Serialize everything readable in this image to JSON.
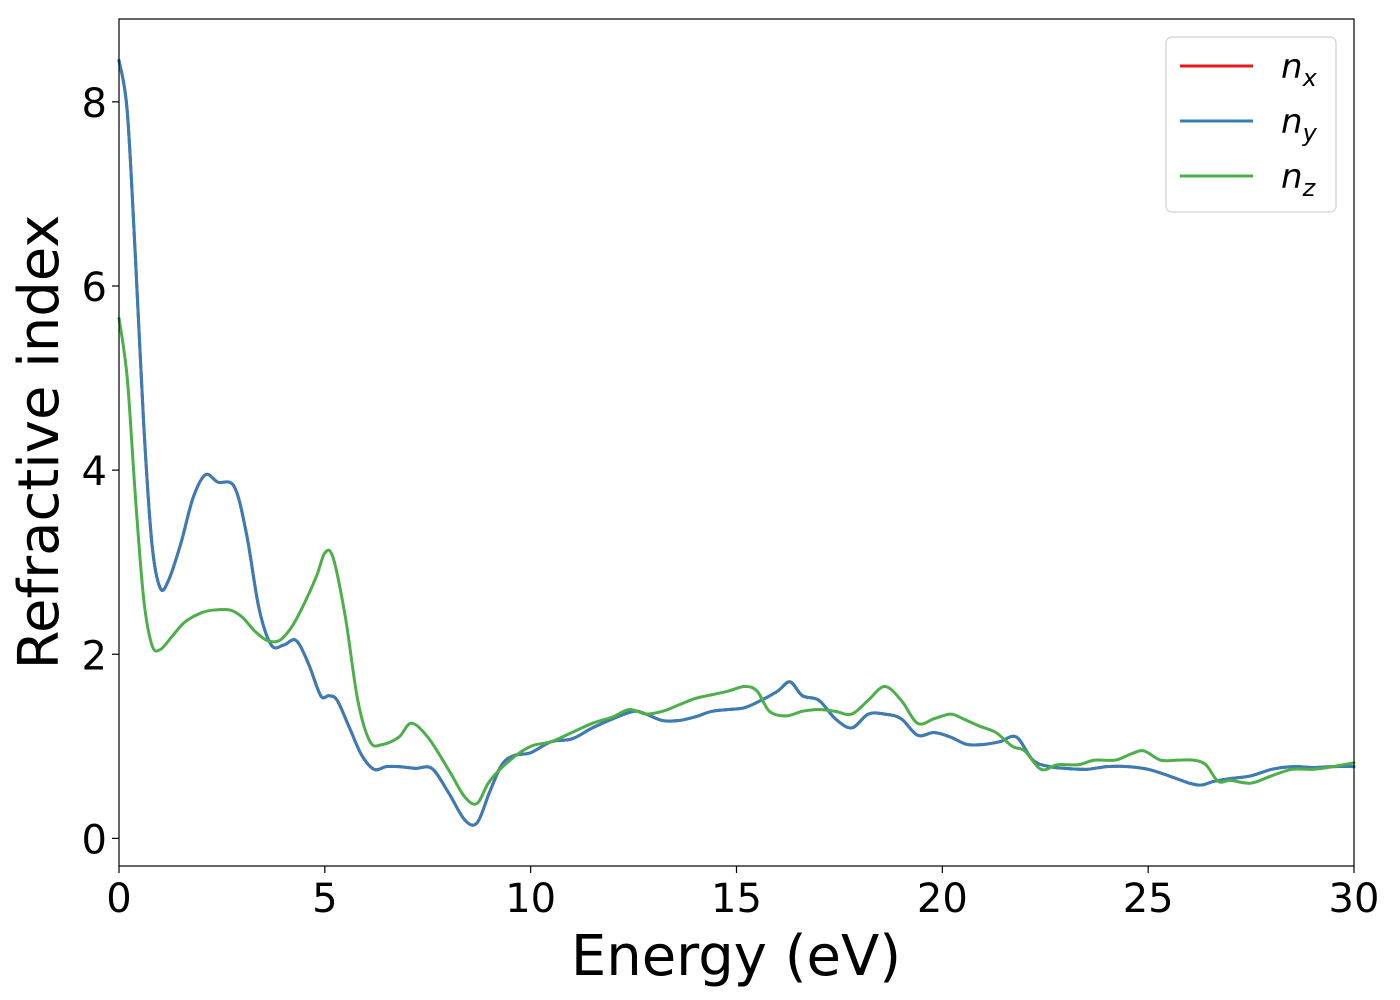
{
  "chart_data": {
    "type": "line",
    "title": "",
    "xlabel": "Energy (eV)",
    "ylabel": "Refractive index",
    "xlim": [
      0,
      30
    ],
    "ylim": [
      -0.3,
      8.9
    ],
    "xticks": [
      0,
      5,
      10,
      15,
      20,
      25,
      30
    ],
    "yticks": [
      0,
      2,
      4,
      6,
      8
    ],
    "grid": false,
    "legend_position": "top-right",
    "series": [
      {
        "name": "n_x",
        "base": "n",
        "sub": "x",
        "color": "#e41a1c",
        "x": [
          0,
          0.2,
          0.4,
          0.6,
          0.8,
          1.0,
          1.2,
          1.5,
          1.8,
          2.1,
          2.4,
          2.8,
          3.1,
          3.4,
          3.7,
          4.0,
          4.3,
          4.6,
          4.9,
          5.1,
          5.3,
          5.6,
          5.9,
          6.2,
          6.5,
          6.8,
          7.2,
          7.6,
          8.0,
          8.4,
          8.7,
          9.0,
          9.3,
          9.6,
          10.0,
          10.5,
          11.0,
          11.5,
          12.0,
          12.5,
          12.8,
          13.2,
          13.6,
          14.0,
          14.4,
          14.8,
          15.2,
          15.6,
          16.0,
          16.3,
          16.6,
          17.0,
          17.4,
          17.8,
          18.2,
          18.6,
          19.0,
          19.4,
          19.8,
          20.2,
          20.6,
          21.0,
          21.4,
          21.8,
          22.2,
          22.6,
          23.0,
          23.5,
          24.0,
          24.5,
          25.0,
          25.5,
          26.0,
          26.3,
          26.6,
          27.0,
          27.5,
          28.0,
          28.5,
          29.0,
          29.5,
          30.0
        ],
        "y": [
          8.45,
          7.9,
          6.3,
          4.5,
          3.2,
          2.72,
          2.8,
          3.2,
          3.7,
          3.95,
          3.87,
          3.82,
          3.3,
          2.5,
          2.1,
          2.1,
          2.15,
          1.9,
          1.55,
          1.55,
          1.5,
          1.2,
          0.9,
          0.75,
          0.78,
          0.78,
          0.76,
          0.76,
          0.5,
          0.2,
          0.17,
          0.5,
          0.8,
          0.9,
          0.93,
          1.05,
          1.08,
          1.2,
          1.3,
          1.38,
          1.35,
          1.28,
          1.28,
          1.32,
          1.38,
          1.4,
          1.42,
          1.5,
          1.6,
          1.7,
          1.55,
          1.5,
          1.3,
          1.2,
          1.35,
          1.35,
          1.3,
          1.12,
          1.15,
          1.1,
          1.02,
          1.02,
          1.05,
          1.1,
          0.85,
          0.78,
          0.76,
          0.75,
          0.78,
          0.78,
          0.75,
          0.68,
          0.6,
          0.58,
          0.62,
          0.65,
          0.68,
          0.75,
          0.78,
          0.77,
          0.78,
          0.78
        ]
      },
      {
        "name": "n_y",
        "base": "n",
        "sub": "y",
        "color": "#377eb8",
        "x": [
          0,
          0.2,
          0.4,
          0.6,
          0.8,
          1.0,
          1.2,
          1.5,
          1.8,
          2.1,
          2.4,
          2.8,
          3.1,
          3.4,
          3.7,
          4.0,
          4.3,
          4.6,
          4.9,
          5.1,
          5.3,
          5.6,
          5.9,
          6.2,
          6.5,
          6.8,
          7.2,
          7.6,
          8.0,
          8.4,
          8.7,
          9.0,
          9.3,
          9.6,
          10.0,
          10.5,
          11.0,
          11.5,
          12.0,
          12.5,
          12.8,
          13.2,
          13.6,
          14.0,
          14.4,
          14.8,
          15.2,
          15.6,
          16.0,
          16.3,
          16.6,
          17.0,
          17.4,
          17.8,
          18.2,
          18.6,
          19.0,
          19.4,
          19.8,
          20.2,
          20.6,
          21.0,
          21.4,
          21.8,
          22.2,
          22.6,
          23.0,
          23.5,
          24.0,
          24.5,
          25.0,
          25.5,
          26.0,
          26.3,
          26.6,
          27.0,
          27.5,
          28.0,
          28.5,
          29.0,
          29.5,
          30.0
        ],
        "y": [
          8.45,
          7.9,
          6.3,
          4.5,
          3.2,
          2.72,
          2.8,
          3.2,
          3.7,
          3.95,
          3.87,
          3.82,
          3.3,
          2.5,
          2.1,
          2.1,
          2.15,
          1.9,
          1.55,
          1.55,
          1.5,
          1.2,
          0.9,
          0.75,
          0.78,
          0.78,
          0.76,
          0.76,
          0.5,
          0.2,
          0.17,
          0.5,
          0.8,
          0.9,
          0.93,
          1.05,
          1.08,
          1.2,
          1.3,
          1.38,
          1.35,
          1.28,
          1.28,
          1.32,
          1.38,
          1.4,
          1.42,
          1.5,
          1.6,
          1.7,
          1.55,
          1.5,
          1.3,
          1.2,
          1.35,
          1.35,
          1.3,
          1.12,
          1.15,
          1.1,
          1.02,
          1.02,
          1.05,
          1.1,
          0.85,
          0.78,
          0.76,
          0.75,
          0.78,
          0.78,
          0.75,
          0.68,
          0.6,
          0.58,
          0.62,
          0.65,
          0.68,
          0.75,
          0.78,
          0.77,
          0.78,
          0.78
        ]
      },
      {
        "name": "n_z",
        "base": "n",
        "sub": "z",
        "color": "#4daf4a",
        "x": [
          0,
          0.2,
          0.4,
          0.6,
          0.8,
          1.0,
          1.3,
          1.6,
          2.0,
          2.3,
          2.7,
          3.0,
          3.3,
          3.6,
          3.9,
          4.2,
          4.5,
          4.8,
          5.0,
          5.2,
          5.5,
          5.8,
          6.1,
          6.4,
          6.8,
          7.1,
          7.5,
          8.0,
          8.4,
          8.7,
          9.0,
          9.5,
          10.0,
          10.5,
          11.0,
          11.5,
          12.0,
          12.4,
          12.8,
          13.2,
          13.6,
          14.0,
          14.4,
          14.8,
          15.2,
          15.5,
          15.8,
          16.2,
          16.6,
          17.0,
          17.4,
          17.8,
          18.2,
          18.6,
          19.0,
          19.4,
          19.8,
          20.2,
          20.5,
          20.9,
          21.3,
          21.7,
          22.0,
          22.4,
          22.8,
          23.3,
          23.7,
          24.2,
          24.6,
          24.9,
          25.3,
          25.7,
          26.1,
          26.4,
          26.7,
          27.0,
          27.5,
          28.0,
          28.5,
          29.0,
          29.5,
          30.0
        ],
        "y": [
          5.65,
          5.0,
          3.7,
          2.6,
          2.1,
          2.05,
          2.2,
          2.35,
          2.45,
          2.48,
          2.48,
          2.4,
          2.25,
          2.15,
          2.15,
          2.3,
          2.55,
          2.85,
          3.1,
          3.05,
          2.4,
          1.5,
          1.05,
          1.02,
          1.1,
          1.25,
          1.1,
          0.75,
          0.45,
          0.38,
          0.62,
          0.85,
          1.0,
          1.05,
          1.15,
          1.25,
          1.32,
          1.4,
          1.35,
          1.38,
          1.45,
          1.52,
          1.56,
          1.6,
          1.65,
          1.6,
          1.38,
          1.33,
          1.38,
          1.4,
          1.38,
          1.35,
          1.5,
          1.65,
          1.5,
          1.25,
          1.3,
          1.35,
          1.3,
          1.22,
          1.15,
          1.0,
          0.95,
          0.75,
          0.8,
          0.8,
          0.85,
          0.85,
          0.92,
          0.95,
          0.85,
          0.85,
          0.85,
          0.8,
          0.62,
          0.63,
          0.6,
          0.68,
          0.75,
          0.75,
          0.78,
          0.82
        ]
      }
    ]
  }
}
